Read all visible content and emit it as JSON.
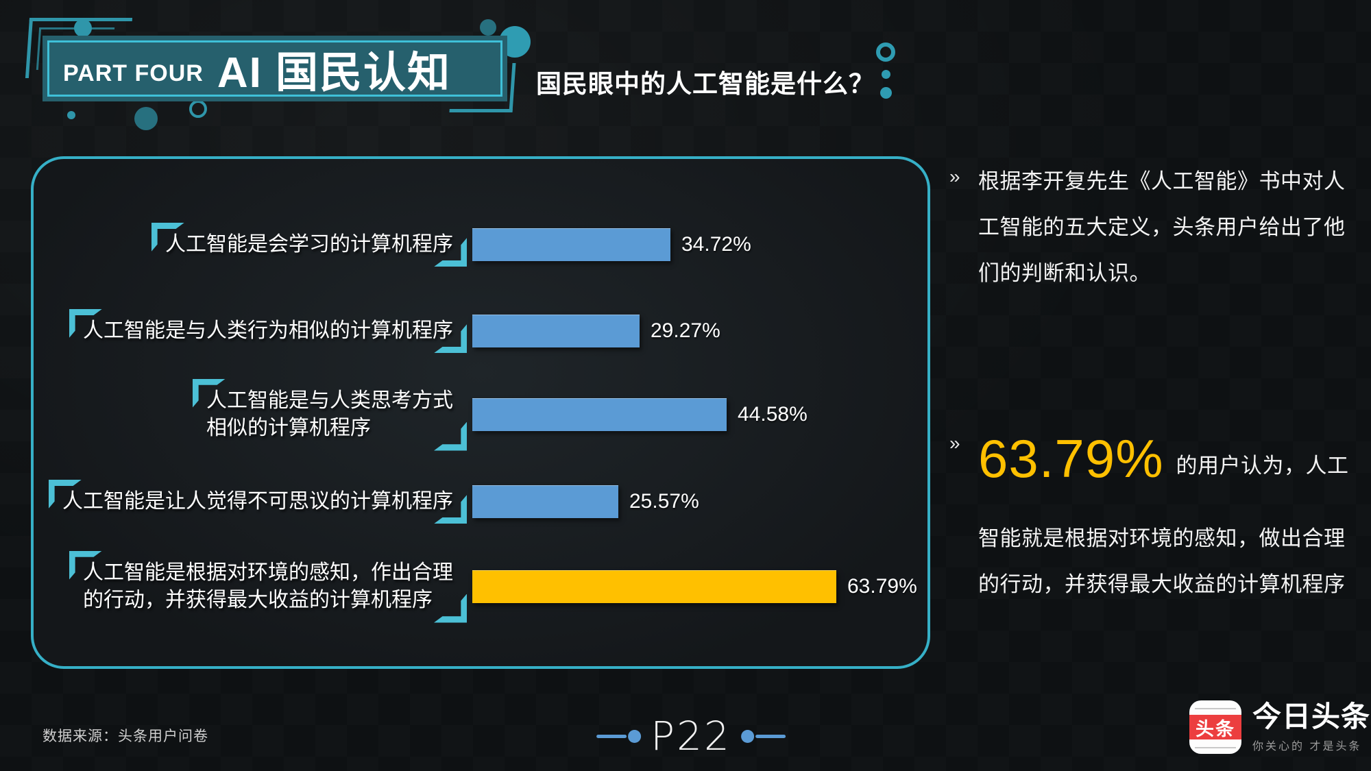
{
  "header": {
    "part_label": "PART FOUR",
    "title": "AI 国民认知",
    "subtitle": "国民眼中的人工智能是什么？"
  },
  "chart_data": {
    "type": "bar",
    "orientation": "horizontal",
    "title": "国民眼中的人工智能是什么？",
    "xlabel": "",
    "ylabel": "",
    "unit": "%",
    "xlim": [
      0,
      70
    ],
    "grid": false,
    "legend": "none",
    "categories": [
      "人工智能是会学习的计算机程序",
      "人工智能是与人类行为相似的计算机程序",
      "人工智能是与人类思考方式相似的计算机程序",
      "人工智能是让人觉得不可思议的计算机程序",
      "人工智能是根据对环境的感知，作出合理的行动，并获得最大收益的计算机程序"
    ],
    "values": [
      34.72,
      29.27,
      44.58,
      25.57,
      63.79
    ],
    "rows": [
      {
        "label_lines": [
          "人工智能是会学习的计算机程序"
        ],
        "value": 34.72,
        "display": "34.72%",
        "color": "#5B9BD5"
      },
      {
        "label_lines": [
          "人工智能是与人类行为相似的计算机程序"
        ],
        "value": 29.27,
        "display": "29.27%",
        "color": "#5B9BD5"
      },
      {
        "label_lines": [
          "人工智能是与人类思考方式",
          "相似的计算机程序"
        ],
        "value": 44.58,
        "display": "44.58%",
        "color": "#5B9BD5"
      },
      {
        "label_lines": [
          "人工智能是让人觉得不可思议的计算机程序"
        ],
        "value": 25.57,
        "display": "25.57%",
        "color": "#5B9BD5"
      },
      {
        "label_lines": [
          "人工智能是根据对环境的感知，作出合理",
          "的行动，并获得最大收益的计算机程序"
        ],
        "value": 63.79,
        "display": "63.79%",
        "color": "#FFC000"
      }
    ]
  },
  "right_panel": {
    "bullet": "»",
    "para1": "根据李开复先生《人工智能》书中对人工智能的五大定义，头条用户给出了他们的判断和认识。",
    "highlight_value": "63.79%",
    "para2_rest": "的用户认为，人工智能就是根据对环境的感知，做出合理的行动，并获得最大收益的计算机程序"
  },
  "footer": {
    "source": "数据来源：头条用户问卷",
    "page": "P22",
    "logo_icon_text": "头条",
    "logo_title": "今日头条",
    "logo_tagline": "你关心的  才是头条"
  },
  "colors": {
    "accent_teal": "#36B0C7",
    "bracket_teal": "#4CC0D6",
    "bar_blue": "#5B9BD5",
    "bar_gold": "#FFC000",
    "highlight_gold": "#FFC000",
    "page_blue": "#5B9BD5",
    "logo_red": "#EC3E3F",
    "background": "#0E1113"
  }
}
